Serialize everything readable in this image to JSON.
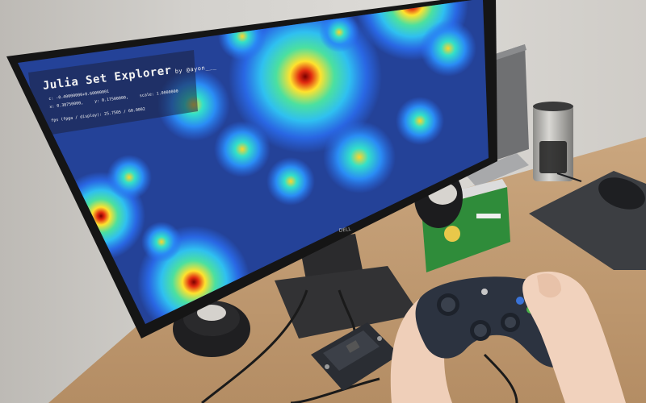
{
  "screen": {
    "title": "Julia Set Explorer",
    "byline": "by @ayon___",
    "c_label": "c:",
    "c_value": "-0.40000000+0.60000001",
    "x_label": "x:",
    "x_value": "0.38750000,",
    "y_label": "y:",
    "y_value": "0.17500000,",
    "scale_label": "scale:",
    "scale_value": "1.0000000",
    "fps_label": "fps (fpga / display):",
    "fps_value": "25.7505 / 60.0002"
  },
  "monitor_brand": "DELL",
  "colors": {
    "fractal_bg": "#1a2c6e",
    "fractal_blue": "#2a6df0",
    "fractal_cyan": "#2fd6e8",
    "fractal_yellow": "#ffe22e",
    "fractal_red": "#d8261c",
    "desk": "#c8a27a",
    "gamepad": "#2c3340"
  },
  "icons": [
    "monitor",
    "speaker",
    "gamepad",
    "fpga-board",
    "mouse",
    "mousepad",
    "travel-mug",
    "laptop",
    "product-box"
  ]
}
